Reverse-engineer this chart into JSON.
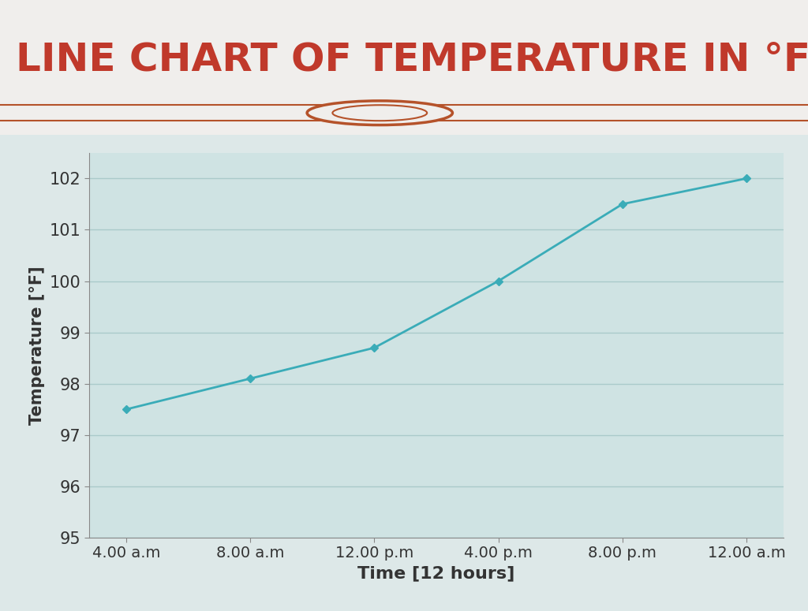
{
  "title": "LINE CHART OF TEMPERATURE IN °F",
  "title_color": "#c0392b",
  "title_fontsize": 36,
  "xlabel": "Time [12 hours]",
  "ylabel": "Temperature [°F]",
  "x_labels": [
    "4.00 a.m",
    "8.00 a.m",
    "12.00 p.m",
    "4.00 p.m",
    "8.00 p.m",
    "12.00 a.m"
  ],
  "x_values": [
    0,
    1,
    2,
    3,
    4,
    5
  ],
  "y_values": [
    97.5,
    98.1,
    98.7,
    100.0,
    101.5,
    102.0
  ],
  "ylim": [
    95,
    102.5
  ],
  "yticks": [
    95,
    96,
    97,
    98,
    99,
    100,
    101,
    102
  ],
  "line_color": "#3aacb8",
  "marker": "D",
  "marker_size": 5,
  "bg_color_top": "#dde8e8",
  "bg_color_title": "#f0eeec",
  "bg_color_plot": "#cfe3e3",
  "grid_color": "#aacaca",
  "axis_label_fontsize": 15,
  "tick_fontsize": 15,
  "xlabel_fontsize": 16,
  "line_width": 2,
  "circle_color": "#b5522a",
  "separator_color": "#b5522a"
}
